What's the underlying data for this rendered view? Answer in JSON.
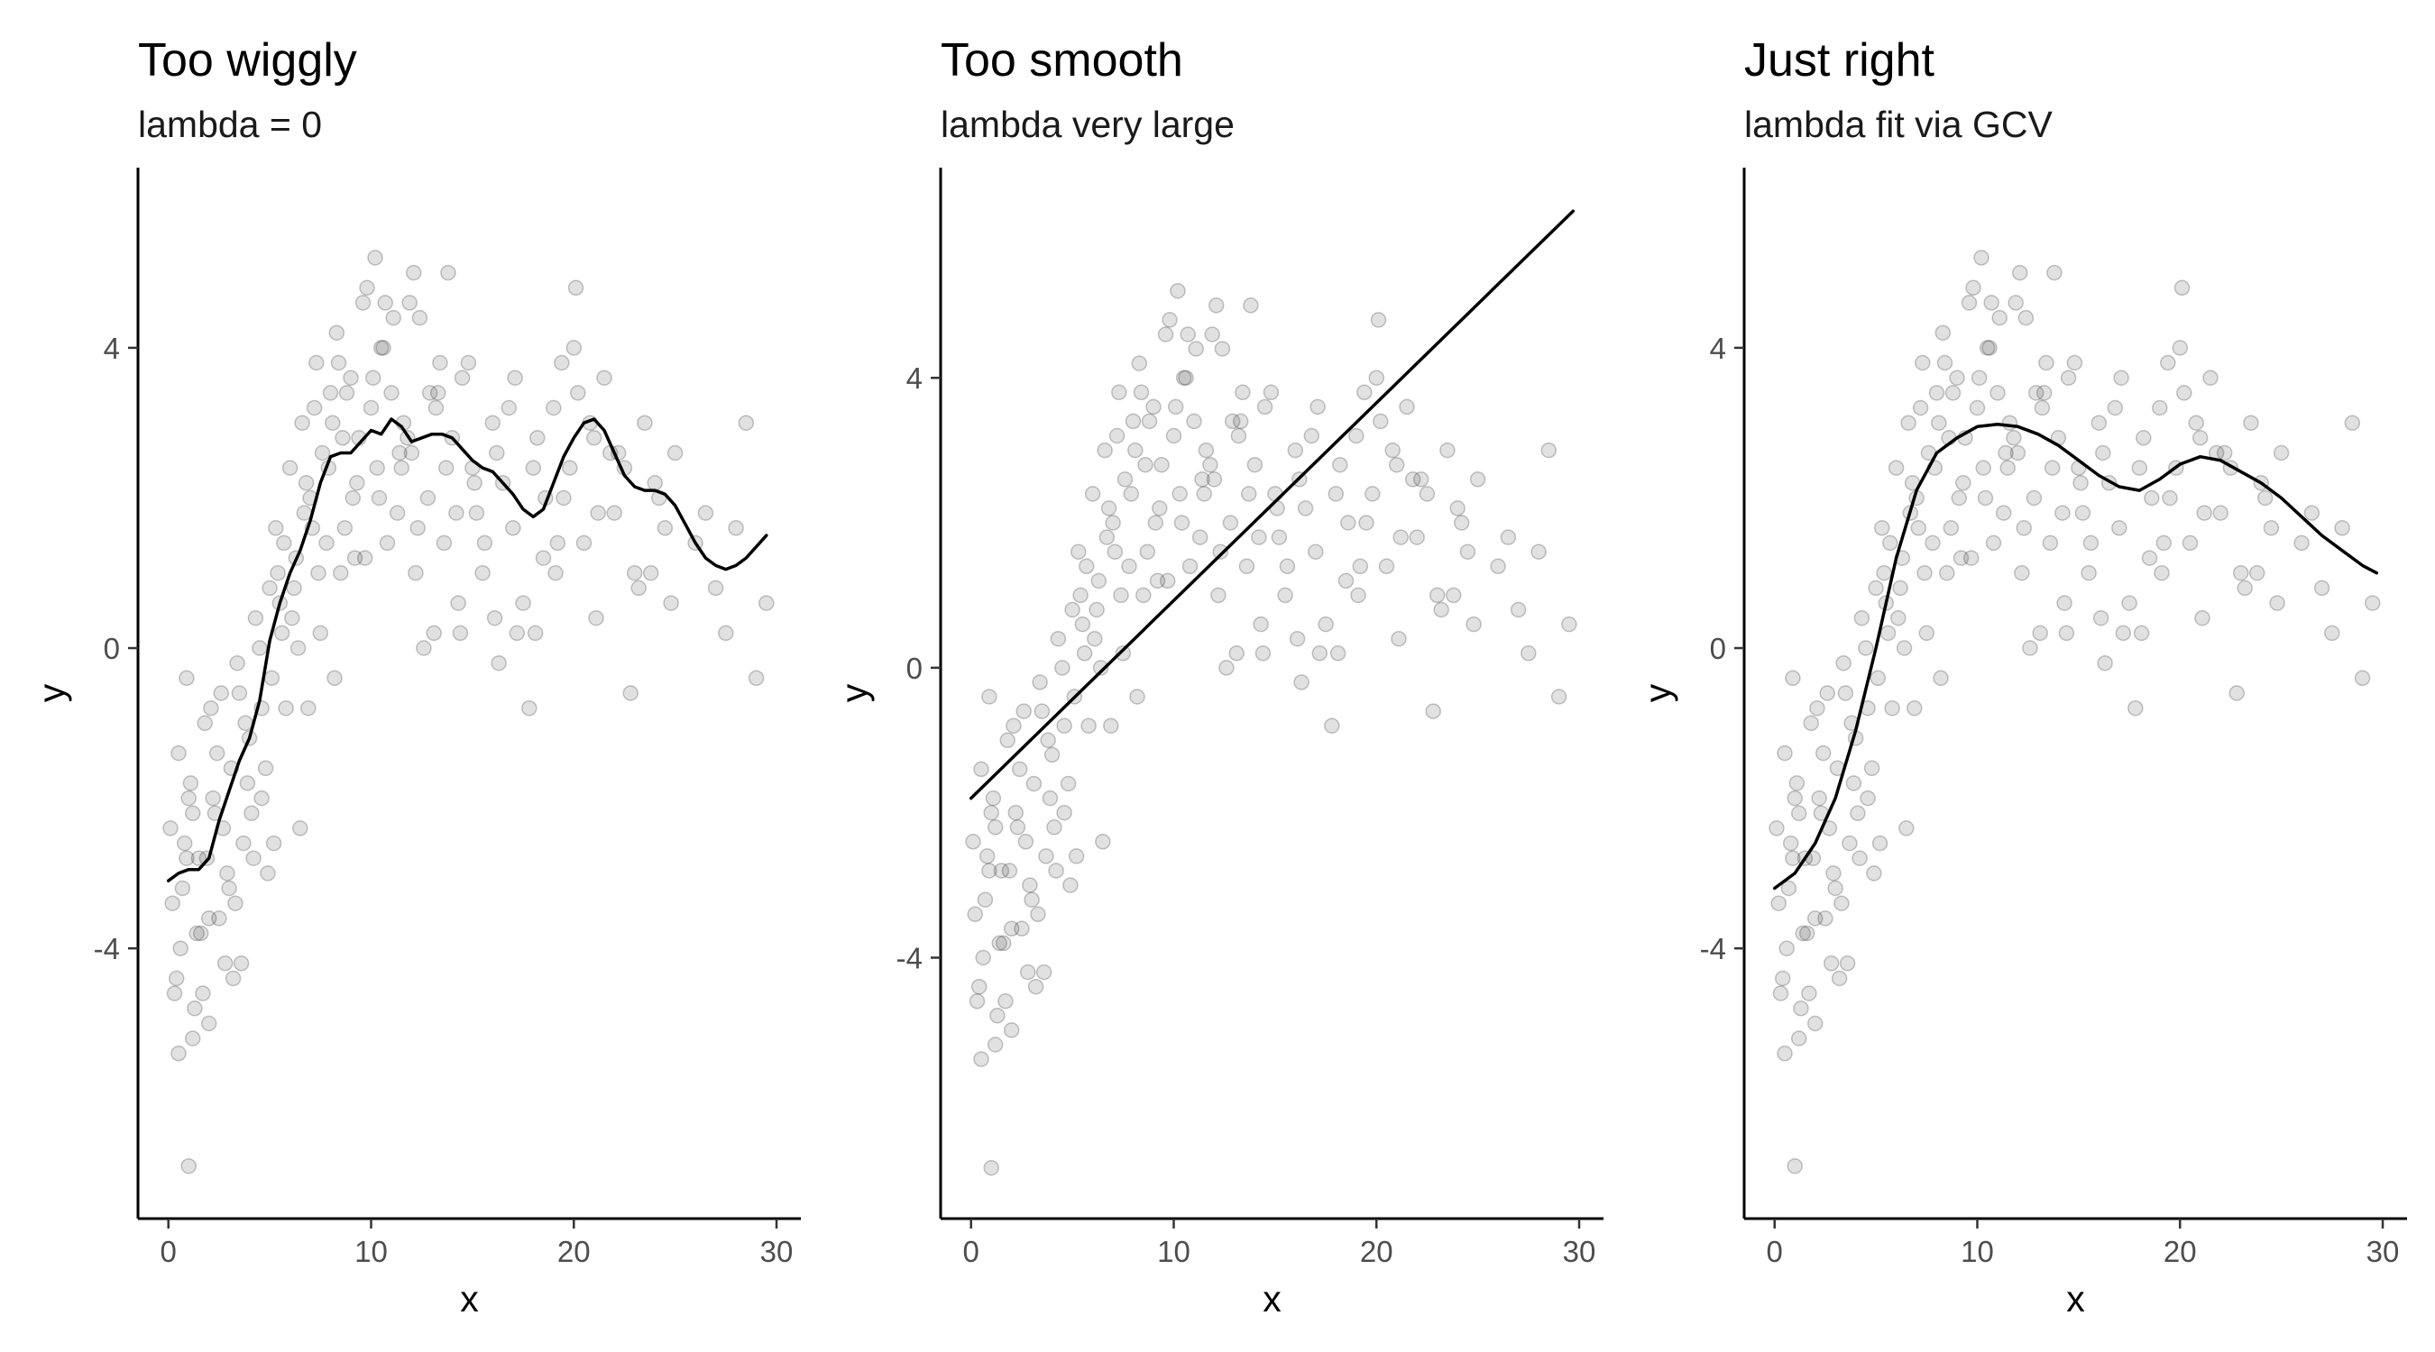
{
  "chart_data": [
    {
      "type": "scatter",
      "title": "Too wiggly",
      "subtitle": "lambda = 0",
      "xlabel": "x",
      "ylabel": "y",
      "xlim": [
        -1.5,
        31.2
      ],
      "ylim": [
        -7.6,
        6.4
      ],
      "xticks": [
        0,
        10,
        20,
        30
      ],
      "yticks": [
        -4,
        0,
        4
      ],
      "grid": false,
      "legend": "none",
      "point_color": "#333333",
      "line_color": "#000000",
      "series": [
        {
          "kind": "points",
          "x": [
            0.1,
            0.3,
            0.5,
            0.7,
            0.9,
            1.0,
            1.2,
            1.5,
            1.8,
            2.0,
            2.3,
            2.6,
            2.9,
            3.1,
            3.4,
            3.7,
            4.0,
            4.3,
            4.6,
            5.0,
            5.3,
            5.6,
            6.0,
            6.3,
            6.6,
            7.0,
            7.3,
            7.6,
            8.0,
            8.3,
            8.6,
            9.0,
            9.3,
            9.6,
            10.0,
            10.3,
            10.6,
            11.0,
            11.3,
            11.6,
            12.0,
            12.4,
            12.8,
            13.2,
            13.6,
            14.0,
            14.5,
            15.0,
            15.5,
            16.0,
            16.5,
            17.0,
            17.5,
            18.0,
            18.5,
            19.0,
            19.5,
            20.0,
            20.5,
            21.0,
            21.5,
            22.0,
            22.5,
            23.0,
            23.5,
            24.0,
            24.5,
            25.0,
            26.0,
            27.0,
            27.5,
            28.0,
            28.5,
            29.0,
            29.5,
            0.2,
            0.6,
            1.1,
            1.6,
            2.1,
            2.7,
            3.3,
            3.9,
            4.5,
            5.1,
            5.7,
            6.2,
            6.8,
            7.4,
            8.1,
            8.7,
            9.4,
            10.1,
            10.8,
            11.5,
            12.2,
            12.9,
            13.7,
            14.3,
            15.2,
            16.2,
            17.2,
            18.2,
            19.2,
            20.2,
            21.2,
            22.2,
            23.2,
            24.2,
            0.4,
            0.8,
            1.3,
            1.9,
            2.4,
            2.8,
            3.5,
            4.1,
            4.8,
            5.4,
            6.1,
            6.7,
            7.2,
            7.8,
            8.4,
            9.1,
            9.8,
            10.4,
            11.1,
            11.8,
            12.6,
            13.4,
            14.2,
            15.1,
            16.1,
            17.1,
            18.1,
            19.1,
            20.1,
            21.1,
            0.5,
            1.4,
            2.2,
            3.0,
            3.8,
            4.6,
            5.5,
            6.4,
            7.1,
            7.9,
            8.8,
            9.7,
            10.5,
            11.4,
            12.3,
            13.3,
            14.4,
            15.6,
            16.8,
            18.6,
            20.8,
            22.8,
            24.8,
            1.0,
            2.0,
            3.6,
            5.2,
            6.9,
            8.5,
            10.2,
            11.9,
            13.8,
            16.3,
            19.4,
            21.8,
            0.9,
            1.7,
            2.5,
            3.2,
            4.2,
            4.9,
            5.8,
            6.5,
            7.5,
            8.2,
            9.2,
            10.7,
            12.1,
            13.1,
            14.8,
            17.8,
            19.8,
            23.8,
            26.5,
            1.2
          ],
          "y": [
            -2.4,
            -4.6,
            -1.4,
            -3.2,
            -0.4,
            -2.0,
            -5.2,
            -2.8,
            -1.0,
            -3.6,
            -2.2,
            -0.6,
            -3.0,
            -1.6,
            -0.2,
            -2.6,
            -1.2,
            0.4,
            -0.8,
            0.8,
            1.6,
            0.2,
            2.4,
            1.2,
            3.0,
            2.0,
            3.8,
            2.6,
            3.4,
            4.2,
            2.8,
            3.6,
            2.2,
            4.6,
            3.2,
            2.4,
            4.0,
            3.4,
            1.8,
            3.0,
            2.6,
            4.4,
            2.0,
            3.2,
            1.4,
            2.8,
            3.6,
            2.4,
            1.0,
            3.0,
            2.2,
            1.6,
            0.6,
            2.4,
            1.2,
            3.2,
            2.0,
            4.0,
            1.4,
            2.8,
            3.6,
            1.8,
            2.4,
            1.0,
            3.0,
            2.2,
            1.6,
            2.6,
            1.4,
            0.8,
            0.2,
            1.6,
            3.0,
            -0.4,
            0.6,
            -3.4,
            -4.0,
            -1.8,
            -3.8,
            -0.8,
            -2.4,
            -3.4,
            -1.8,
            0.0,
            -0.4,
            1.4,
            0.8,
            2.2,
            1.0,
            3.0,
            1.6,
            2.8,
            3.6,
            1.4,
            2.4,
            1.0,
            3.4,
            2.4,
            0.6,
            1.8,
            2.6,
            0.2,
            2.8,
            1.4,
            3.4,
            1.8,
            2.6,
            0.8,
            2.0,
            -4.4,
            -2.6,
            -4.8,
            -2.8,
            -1.4,
            -4.2,
            -0.6,
            -2.2,
            -1.6,
            1.0,
            0.4,
            1.8,
            3.2,
            1.4,
            3.8,
            2.0,
            4.8,
            2.0,
            4.4,
            2.8,
            0.0,
            3.8,
            1.8,
            2.2,
            0.4,
            3.6,
            0.2,
            1.0,
            4.8,
            0.4,
            -5.4,
            -3.8,
            -2.0,
            -3.2,
            -1.0,
            -2.0,
            0.6,
            0.0,
            1.6,
            2.4,
            3.4,
            1.2,
            4.0,
            2.6,
            1.6,
            3.4,
            0.2,
            1.4,
            3.2,
            2.0,
            3.0,
            -0.6,
            0.6,
            -6.9,
            -5.0,
            -4.2,
            -2.6,
            -0.8,
            1.0,
            5.2,
            4.6,
            5.0,
            -0.2,
            3.8,
            2.6,
            -2.8,
            -4.6,
            -3.6,
            -4.4,
            -2.8,
            -3.0,
            -0.8,
            -2.4,
            0.2,
            -0.4,
            1.2,
            4.6,
            5.0,
            0.2,
            3.8,
            -0.8,
            2.4,
            1.0,
            1.8,
            -2.2
          ],
          "n_points_shown": 180
        },
        {
          "kind": "line",
          "name": "",
          "x": [
            0,
            0.5,
            1.0,
            1.5,
            2.0,
            2.5,
            3.0,
            3.5,
            4.0,
            4.5,
            5.0,
            5.5,
            6.0,
            6.5,
            7.0,
            7.5,
            8.0,
            8.5,
            9.0,
            9.5,
            10.0,
            10.5,
            11.0,
            11.5,
            12.0,
            12.5,
            13.0,
            13.5,
            14.0,
            14.5,
            15.0,
            15.5,
            16.0,
            16.5,
            17.0,
            17.5,
            18.0,
            18.5,
            19.0,
            19.5,
            20.0,
            20.5,
            21.0,
            21.5,
            22.0,
            22.5,
            23.0,
            23.5,
            24.0,
            24.5,
            25.0,
            25.5,
            26.0,
            26.5,
            27.0,
            27.5,
            28.0,
            28.5,
            29.0,
            29.5
          ],
          "y": [
            -3.1,
            -3.0,
            -2.95,
            -2.95,
            -2.8,
            -2.3,
            -1.9,
            -1.5,
            -1.2,
            -0.7,
            0.1,
            0.6,
            1.0,
            1.3,
            1.7,
            2.2,
            2.55,
            2.6,
            2.6,
            2.75,
            2.9,
            2.85,
            3.05,
            2.95,
            2.75,
            2.8,
            2.85,
            2.85,
            2.8,
            2.65,
            2.5,
            2.4,
            2.35,
            2.2,
            2.05,
            1.85,
            1.75,
            1.85,
            2.2,
            2.55,
            2.8,
            3.0,
            3.05,
            2.9,
            2.6,
            2.3,
            2.15,
            2.1,
            2.1,
            2.05,
            1.9,
            1.65,
            1.4,
            1.2,
            1.1,
            1.05,
            1.1,
            1.2,
            1.35,
            1.5
          ]
        }
      ]
    },
    {
      "type": "scatter",
      "title": "Too smooth",
      "subtitle": "lambda very large",
      "xlabel": "x",
      "ylabel": "y",
      "xlim": [
        -1.5,
        31.2
      ],
      "ylim": [
        -7.6,
        6.9
      ],
      "xticks": [
        0,
        10,
        20,
        30
      ],
      "yticks": [
        -4,
        0,
        4
      ],
      "grid": false,
      "legend": "none",
      "point_color": "#333333",
      "line_color": "#000000",
      "series": [
        {
          "kind": "points",
          "same_as_panel": 0
        },
        {
          "kind": "line",
          "name": "",
          "x": [
            0,
            29.7
          ],
          "y": [
            -1.8,
            6.3
          ]
        }
      ]
    },
    {
      "type": "scatter",
      "title": "Just right",
      "subtitle": "lambda fit via GCV",
      "xlabel": "x",
      "ylabel": "y",
      "xlim": [
        -1.5,
        31.2
      ],
      "ylim": [
        -7.6,
        6.4
      ],
      "xticks": [
        0,
        10,
        20,
        30
      ],
      "yticks": [
        -4,
        0,
        4
      ],
      "grid": false,
      "legend": "none",
      "point_color": "#333333",
      "line_color": "#000000",
      "series": [
        {
          "kind": "points",
          "same_as_panel": 0
        },
        {
          "kind": "line",
          "name": "",
          "x": [
            0,
            1,
            2,
            3,
            4,
            5,
            6,
            7,
            8,
            9,
            10,
            11,
            12,
            13,
            14,
            15,
            16,
            17,
            18,
            19,
            20,
            21,
            22,
            23,
            24,
            25,
            26,
            27,
            28,
            29,
            29.7
          ],
          "y": [
            -3.2,
            -3.0,
            -2.6,
            -2.0,
            -1.1,
            0.0,
            1.2,
            2.1,
            2.6,
            2.8,
            2.95,
            2.98,
            2.95,
            2.85,
            2.7,
            2.5,
            2.3,
            2.15,
            2.1,
            2.25,
            2.45,
            2.55,
            2.5,
            2.35,
            2.2,
            2.0,
            1.75,
            1.5,
            1.3,
            1.1,
            1.0
          ]
        }
      ]
    }
  ]
}
